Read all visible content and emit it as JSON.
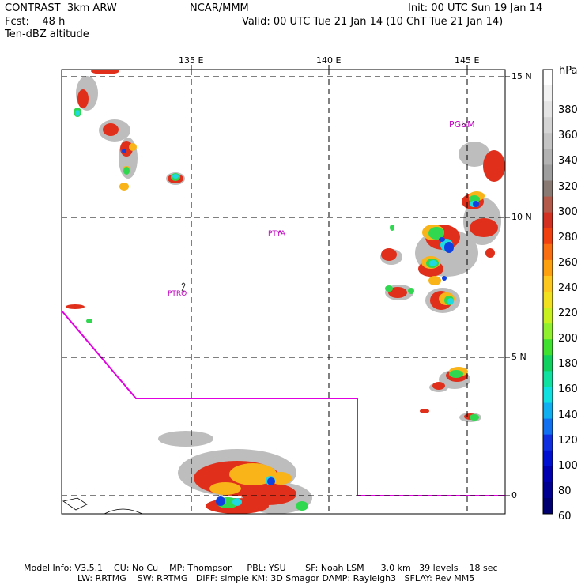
{
  "header": {
    "line1_left": "CONTRAST  3km ARW",
    "line1_center": "NCAR/MMM",
    "line1_right": "Init: 00 UTC Sun 19 Jan 14",
    "line2_left": "Fcst:    48 h",
    "line2_right": "Valid: 00 UTC Tue 21 Jan 14 (10 ChT Tue 21 Jan 14)",
    "line3_left": "Ten-dBZ altitude"
  },
  "map": {
    "lon_labels": [
      "135 E",
      "140 E",
      "145 E"
    ],
    "lat_labels": [
      "15 N",
      "10 N",
      "5 N",
      "0"
    ],
    "stations": [
      "PGUM",
      "PTYA",
      "PTRO"
    ],
    "boundary_color": "#e000e0",
    "station_color": "#c000c0"
  },
  "colorbar": {
    "unit": "hPa",
    "labels": [
      "380",
      "360",
      "340",
      "320",
      "300",
      "280",
      "260",
      "240",
      "220",
      "200",
      "180",
      "160",
      "140",
      "120",
      "100",
      "80",
      "60"
    ],
    "colors": [
      "#ffffff",
      "#f2f2f2",
      "#e4e4e4",
      "#d4d4d4",
      "#c4c4c4",
      "#b2b2b2",
      "#9e9e9e",
      "#8a7a74",
      "#b45a4a",
      "#d23020",
      "#f04010",
      "#f86e10",
      "#fca010",
      "#fcc820",
      "#f0e020",
      "#c8f020",
      "#90f030",
      "#40e030",
      "#10d060",
      "#10e0a0",
      "#10e0e0",
      "#10b0f0",
      "#1070f0",
      "#1030e0",
      "#0010d0",
      "#0000b0",
      "#000090",
      "#000070"
    ]
  },
  "footer": {
    "line1": "Model Info: V3.5.1    CU: No Cu    MP: Thompson     PBL: YSU       SF: Noah LSM      3.0 km   39 levels    18 sec",
    "line2": "LW: RRTMG    SW: RRTMG   DIFF: simple KM: 3D Smagor DAMP: Rayleigh3   SFLAY: Rev MM5"
  }
}
